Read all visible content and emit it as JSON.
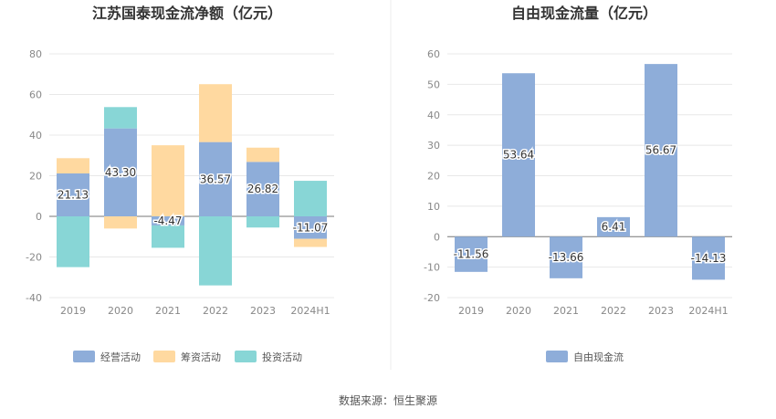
{
  "chart_data": [
    {
      "type": "bar",
      "stacked": true,
      "title": "江苏国泰现金流净额（亿元）",
      "categories": [
        "2019",
        "2020",
        "2021",
        "2022",
        "2023",
        "2024H1"
      ],
      "ylim": [
        -40,
        80
      ],
      "yticks": [
        "80",
        "60",
        "40",
        "20",
        "0",
        "-20",
        "-40"
      ],
      "series": [
        {
          "name": "经营活动",
          "color": "#8eadd9",
          "values": [
            21.13,
            43.3,
            -4.47,
            36.57,
            26.82,
            -11.07
          ]
        },
        {
          "name": "筹资活动",
          "color": "#ffd9a0",
          "values": [
            7.5,
            -6.0,
            35.0,
            28.5,
            7.0,
            -4.0
          ]
        },
        {
          "name": "投资活动",
          "color": "#88d6d6",
          "values": [
            -25.0,
            10.5,
            -11.0,
            -34.0,
            -5.5,
            17.5
          ]
        }
      ],
      "data_labels": [
        "21.13",
        "43.30",
        "-4.47",
        "36.57",
        "26.82",
        "-11.07"
      ]
    },
    {
      "type": "bar",
      "title": "自由现金流量（亿元）",
      "categories": [
        "2019",
        "2020",
        "2021",
        "2022",
        "2023",
        "2024H1"
      ],
      "ylim": [
        -20,
        60
      ],
      "yticks": [
        "60",
        "50",
        "40",
        "30",
        "20",
        "10",
        "0",
        "-10",
        "-20"
      ],
      "series": [
        {
          "name": "自由现金流",
          "color": "#8eadd9",
          "values": [
            -11.56,
            53.64,
            -13.66,
            6.41,
            56.67,
            -14.13
          ]
        }
      ],
      "data_labels": [
        "-11.56",
        "53.64",
        "-13.66",
        "6.41",
        "56.67",
        "-14.13"
      ]
    }
  ],
  "source": "数据来源：恒生聚源"
}
